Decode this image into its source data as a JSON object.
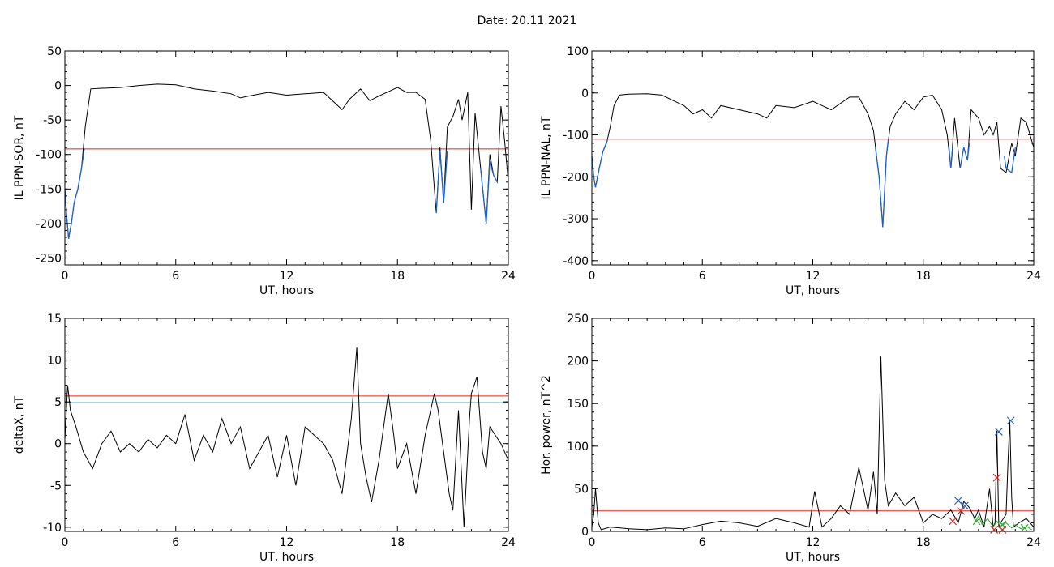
{
  "title": "Date:  20.11.2021",
  "chart_data": [
    {
      "type": "line",
      "ylabel": "IL PPN-SOR, nT",
      "xlabel": "UT, hours",
      "xlim": [
        0,
        24
      ],
      "ylim": [
        -260,
        50
      ],
      "xticks": [
        0,
        6,
        12,
        18,
        24
      ],
      "yticks": [
        -250,
        -200,
        -150,
        -100,
        -50,
        0,
        50
      ],
      "grid": false,
      "thresholds": [
        {
          "value": -92,
          "color": "#e8201c"
        }
      ],
      "series": [
        {
          "color": "#000000",
          "x": [
            0,
            0.1,
            0.2,
            0.35,
            0.5,
            0.7,
            0.9,
            1.1,
            1.4,
            2,
            3,
            4,
            5,
            6,
            7,
            8,
            9,
            9.5,
            10,
            11,
            12,
            13,
            14,
            15,
            15.4,
            16,
            16.5,
            17,
            18,
            18.5,
            19,
            19.5,
            19.8,
            20,
            20.1,
            20.3,
            20.5,
            20.7,
            21,
            21.3,
            21.5,
            21.8,
            22,
            22.2,
            22.5,
            22.8,
            23,
            23.2,
            23.4,
            23.6,
            23.8,
            24
          ],
          "y": [
            -150,
            -190,
            -222,
            -200,
            -170,
            -150,
            -120,
            -60,
            -5,
            -4,
            -3,
            0,
            2,
            1,
            -5,
            -8,
            -12,
            -18,
            -15,
            -10,
            -14,
            -12,
            -10,
            -35,
            -20,
            -5,
            -22,
            -15,
            -3,
            -10,
            -10,
            -20,
            -80,
            -150,
            -185,
            -90,
            -170,
            -60,
            -45,
            -20,
            -50,
            -10,
            -180,
            -40,
            -120,
            -200,
            -100,
            -130,
            -140,
            -30,
            -80,
            -140
          ]
        }
      ],
      "highlight_series": {
        "color": "#1d5fd1",
        "segments": [
          {
            "x": [
              0,
              0.1,
              0.2,
              0.35,
              0.5,
              0.7,
              0.9,
              1.05
            ],
            "y": [
              -150,
              -190,
              -222,
              -200,
              -170,
              -150,
              -120,
              -92
            ]
          },
          {
            "x": [
              20.1,
              20.3,
              20.5,
              20.7
            ],
            "y": [
              -185,
              -95,
              -170,
              -95
            ]
          },
          {
            "x": [
              22.5,
              22.8,
              23.0,
              23.2,
              23.4
            ],
            "y": [
              -120,
              -200,
              -110,
              -130,
              -140
            ]
          }
        ]
      }
    },
    {
      "type": "line",
      "ylabel": "IL PPN-NAL, nT",
      "xlabel": "UT, hours",
      "xlim": [
        0,
        24
      ],
      "ylim": [
        -410,
        100
      ],
      "xticks": [
        0,
        6,
        12,
        18,
        24
      ],
      "yticks": [
        -400,
        -300,
        -200,
        -100,
        0,
        100
      ],
      "grid": false,
      "thresholds": [
        {
          "value": -110,
          "color": "#e8201c"
        }
      ],
      "series": [
        {
          "color": "#000000",
          "x": [
            0,
            0.1,
            0.2,
            0.4,
            0.6,
            0.8,
            1,
            1.2,
            1.5,
            2,
            3,
            3.8,
            4.5,
            5,
            5.5,
            6,
            6.5,
            7,
            8,
            9,
            9.5,
            10,
            11,
            12,
            13,
            14,
            14.5,
            15,
            15.3,
            15.6,
            15.8,
            16,
            16.2,
            16.5,
            17,
            17.5,
            18,
            18.5,
            19,
            19.3,
            19.5,
            19.7,
            20,
            20.2,
            20.4,
            20.6,
            21,
            21.3,
            21.6,
            21.8,
            22,
            22.2,
            22.5,
            22.8,
            23,
            23.3,
            23.6,
            24
          ],
          "y": [
            -150,
            -200,
            -225,
            -180,
            -140,
            -120,
            -80,
            -30,
            -5,
            -3,
            -2,
            -5,
            -20,
            -30,
            -50,
            -40,
            -60,
            -30,
            -40,
            -50,
            -60,
            -30,
            -35,
            -20,
            -40,
            -10,
            -10,
            -50,
            -90,
            -200,
            -320,
            -150,
            -80,
            -50,
            -20,
            -40,
            -10,
            -5,
            -40,
            -100,
            -180,
            -60,
            -180,
            -130,
            -160,
            -40,
            -60,
            -100,
            -80,
            -100,
            -70,
            -180,
            -190,
            -120,
            -150,
            -60,
            -70,
            -130
          ]
        }
      ],
      "highlight_series": {
        "color": "#1d5fd1",
        "segments": [
          {
            "x": [
              0,
              0.1,
              0.2,
              0.4,
              0.6,
              0.85
            ],
            "y": [
              -150,
              -200,
              -225,
              -180,
              -140,
              -112
            ]
          },
          {
            "x": [
              15.4,
              15.6,
              15.8,
              16.0,
              16.1
            ],
            "y": [
              -130,
              -200,
              -320,
              -150,
              -112
            ]
          },
          {
            "x": [
              19.4,
              19.5,
              19.6
            ],
            "y": [
              -130,
              -180,
              -130
            ]
          },
          {
            "x": [
              20.0,
              20.2,
              20.4,
              20.5
            ],
            "y": [
              -180,
              -130,
              -160,
              -120
            ]
          },
          {
            "x": [
              22.4,
              22.5,
              22.8,
              23.0
            ],
            "y": [
              -150,
              -180,
              -190,
              -130
            ]
          }
        ]
      }
    },
    {
      "type": "line",
      "ylabel": "deltaX, nT",
      "xlabel": "UT, hours",
      "xlim": [
        0,
        24
      ],
      "ylim": [
        -10.5,
        15
      ],
      "xticks": [
        0,
        6,
        12,
        18,
        24
      ],
      "yticks": [
        -10,
        -5,
        0,
        5,
        10,
        15
      ],
      "grid": false,
      "thresholds": [
        {
          "value": 5.7,
          "color": "#e8201c"
        },
        {
          "value": 4.9,
          "color": "#1e8ca8"
        }
      ],
      "series": [
        {
          "color": "#000000",
          "x": [
            0,
            0.15,
            0.3,
            0.6,
            1,
            1.5,
            2,
            2.5,
            3,
            3.5,
            4,
            4.5,
            5,
            5.5,
            6,
            6.5,
            7,
            7.5,
            8,
            8.5,
            9,
            9.5,
            10,
            10.5,
            11,
            11.5,
            12,
            12.5,
            13,
            13.5,
            14,
            14.5,
            15,
            15.5,
            15.8,
            16,
            16.3,
            16.6,
            17,
            17.5,
            17.8,
            18,
            18.5,
            19,
            19.5,
            20,
            20.2,
            20.5,
            20.8,
            21,
            21.3,
            21.6,
            21.9,
            22,
            22.3,
            22.6,
            22.8,
            23,
            23.3,
            23.6,
            24
          ],
          "y": [
            0.5,
            7,
            4,
            2,
            -1,
            -3,
            0,
            1.5,
            -1,
            0,
            -1,
            0.5,
            -0.5,
            1,
            0,
            3.5,
            -2,
            1,
            -1,
            3,
            0,
            2,
            -3,
            -1,
            1,
            -4,
            1,
            -5,
            2,
            1,
            0,
            -2,
            -6,
            3,
            11.5,
            0,
            -4,
            -7,
            -2,
            6,
            1,
            -3,
            0,
            -6,
            1,
            6,
            4,
            -1,
            -6,
            -8,
            4,
            -10,
            3,
            6,
            8,
            -1,
            -3,
            2,
            1,
            0,
            -2
          ]
        }
      ]
    },
    {
      "type": "line",
      "ylabel": "Hor. power, nT^2",
      "xlabel": "UT, hours",
      "xlim": [
        0,
        24
      ],
      "ylim": [
        0,
        250
      ],
      "xticks": [
        0,
        6,
        12,
        18,
        24
      ],
      "yticks": [
        0,
        50,
        100,
        150,
        200,
        250
      ],
      "grid": false,
      "thresholds": [
        {
          "value": 24,
          "color": "#e8201c"
        }
      ],
      "series": [
        {
          "color": "#000000",
          "x": [
            0,
            0.1,
            0.2,
            0.35,
            0.5,
            1,
            2,
            3,
            4,
            5,
            6,
            7,
            8,
            9,
            10,
            11,
            11.8,
            12.1,
            12.5,
            13,
            13.5,
            14,
            14.5,
            15,
            15.3,
            15.5,
            15.7,
            15.9,
            16.1,
            16.5,
            17,
            17.5,
            18,
            18.5,
            19,
            19.5,
            19.9,
            20.2,
            20.5,
            20.8,
            21,
            21.3,
            21.6,
            21.8,
            21.9,
            22,
            22.1,
            22.2,
            22.5,
            22.6,
            22.7,
            22.8,
            22.9,
            23.2,
            23.6,
            24
          ],
          "y": [
            5,
            20,
            50,
            10,
            2,
            5,
            3,
            2,
            4,
            3,
            8,
            12,
            10,
            6,
            15,
            10,
            5,
            47,
            5,
            15,
            30,
            20,
            75,
            25,
            70,
            20,
            205,
            60,
            30,
            45,
            30,
            40,
            10,
            20,
            15,
            25,
            10,
            35,
            28,
            15,
            25,
            5,
            50,
            5,
            10,
            118,
            5,
            10,
            20,
            80,
            130,
            40,
            5,
            10,
            15,
            5
          ]
        },
        {
          "color": "#2ea82e",
          "x": [
            20.8,
            21.0,
            21.2,
            21.5,
            21.8,
            22.0,
            22.2,
            22.5,
            22.8,
            23.0,
            23.3,
            23.6,
            23.9
          ],
          "y": [
            10,
            18,
            8,
            15,
            5,
            12,
            6,
            10,
            4,
            8,
            3,
            6,
            2
          ]
        }
      ],
      "markers": [
        {
          "x": 19.9,
          "y": 36,
          "color": "#2060c8"
        },
        {
          "x": 20.25,
          "y": 30,
          "color": "#2060c8"
        },
        {
          "x": 22.1,
          "y": 117,
          "color": "#2060c8"
        },
        {
          "x": 22.75,
          "y": 130,
          "color": "#2060c8"
        },
        {
          "x": 20.05,
          "y": 24,
          "color": "#d02020"
        },
        {
          "x": 22.0,
          "y": 63,
          "color": "#d02020"
        },
        {
          "x": 21.85,
          "y": 2,
          "color": "#d02020"
        },
        {
          "x": 22.3,
          "y": 2,
          "color": "#d02020"
        },
        {
          "x": 19.6,
          "y": 12,
          "color": "#d02020"
        },
        {
          "x": 20.9,
          "y": 12,
          "color": "#2ea82e"
        },
        {
          "x": 22.3,
          "y": 8,
          "color": "#2ea82e"
        },
        {
          "x": 23.5,
          "y": 4,
          "color": "#2ea82e"
        }
      ]
    }
  ]
}
